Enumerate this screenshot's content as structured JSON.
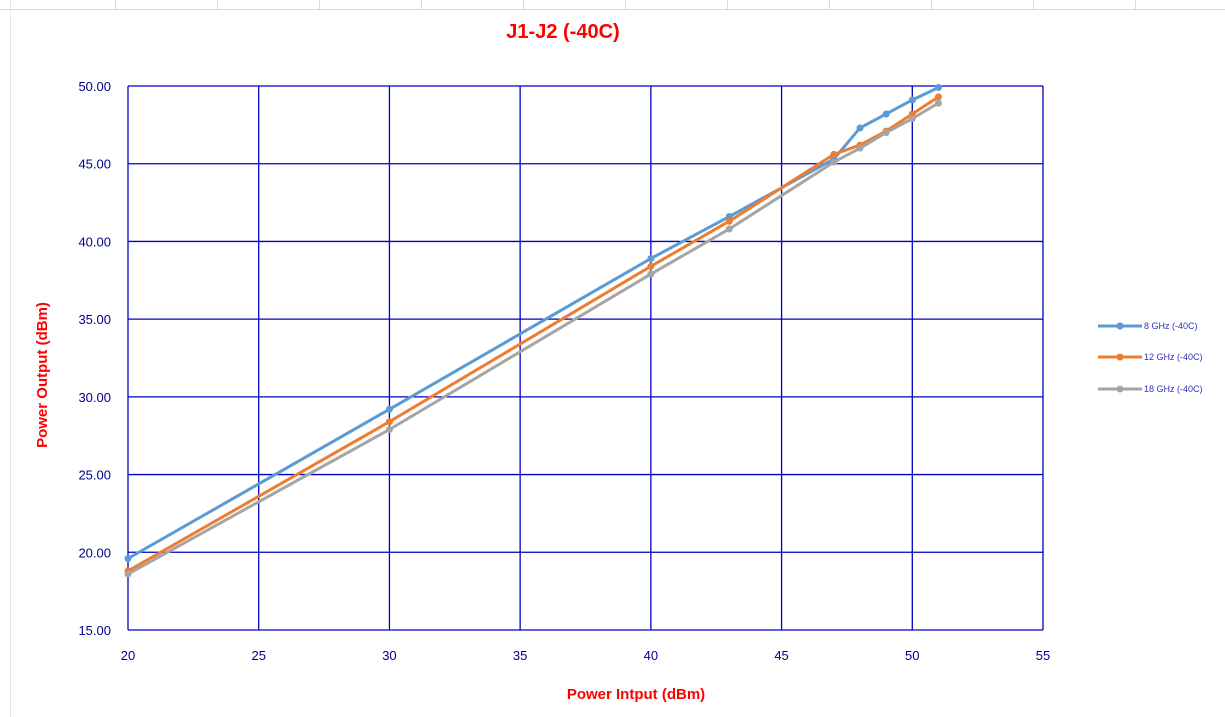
{
  "chart_data": {
    "type": "line",
    "title": "J1-J2 (-40C)",
    "xlabel": "Power Intput (dBm)",
    "ylabel": "Power Output  (dBm)",
    "xlim": [
      20,
      55
    ],
    "ylim": [
      15,
      50
    ],
    "xticks": [
      20,
      25,
      30,
      35,
      40,
      45,
      50,
      55
    ],
    "yticks": [
      15,
      20,
      25,
      30,
      35,
      40,
      45,
      50
    ],
    "ytick_labels": [
      "15.00",
      "20.00",
      "25.00",
      "30.00",
      "35.00",
      "40.00",
      "45.00",
      "50.00"
    ],
    "grid": true,
    "legend_position": "right",
    "colors": {
      "title": "#ff0000",
      "axis_labels": "#ff0000",
      "tick_labels": "#00008b",
      "grid": "#0000c0",
      "legend_text": "#3030c0"
    },
    "series": [
      {
        "name": "8 GHz (-40C)",
        "color": "#5b9bd5",
        "points": [
          [
            20,
            19.6
          ],
          [
            30,
            29.2
          ],
          [
            40,
            38.9
          ],
          [
            43,
            41.6
          ],
          [
            47,
            45.3
          ],
          [
            48,
            47.3
          ],
          [
            49,
            48.2
          ],
          [
            50,
            49.1
          ],
          [
            51,
            49.9
          ]
        ]
      },
      {
        "name": "12 GHz (-40C)",
        "color": "#ed7d31",
        "points": [
          [
            20,
            18.8
          ],
          [
            30,
            28.4
          ],
          [
            40,
            38.4
          ],
          [
            43,
            41.3
          ],
          [
            47,
            45.6
          ],
          [
            48,
            46.2
          ],
          [
            49,
            47.1
          ],
          [
            50,
            48.2
          ],
          [
            51,
            49.3
          ]
        ]
      },
      {
        "name": "18 GHz (-40C)",
        "color": "#a5a5a5",
        "points": [
          [
            20,
            18.6
          ],
          [
            30,
            27.9
          ],
          [
            40,
            37.9
          ],
          [
            43,
            40.8
          ],
          [
            47,
            45.1
          ],
          [
            48,
            46.0
          ],
          [
            49,
            47.0
          ],
          [
            50,
            47.9
          ],
          [
            51,
            48.9
          ]
        ]
      }
    ]
  }
}
